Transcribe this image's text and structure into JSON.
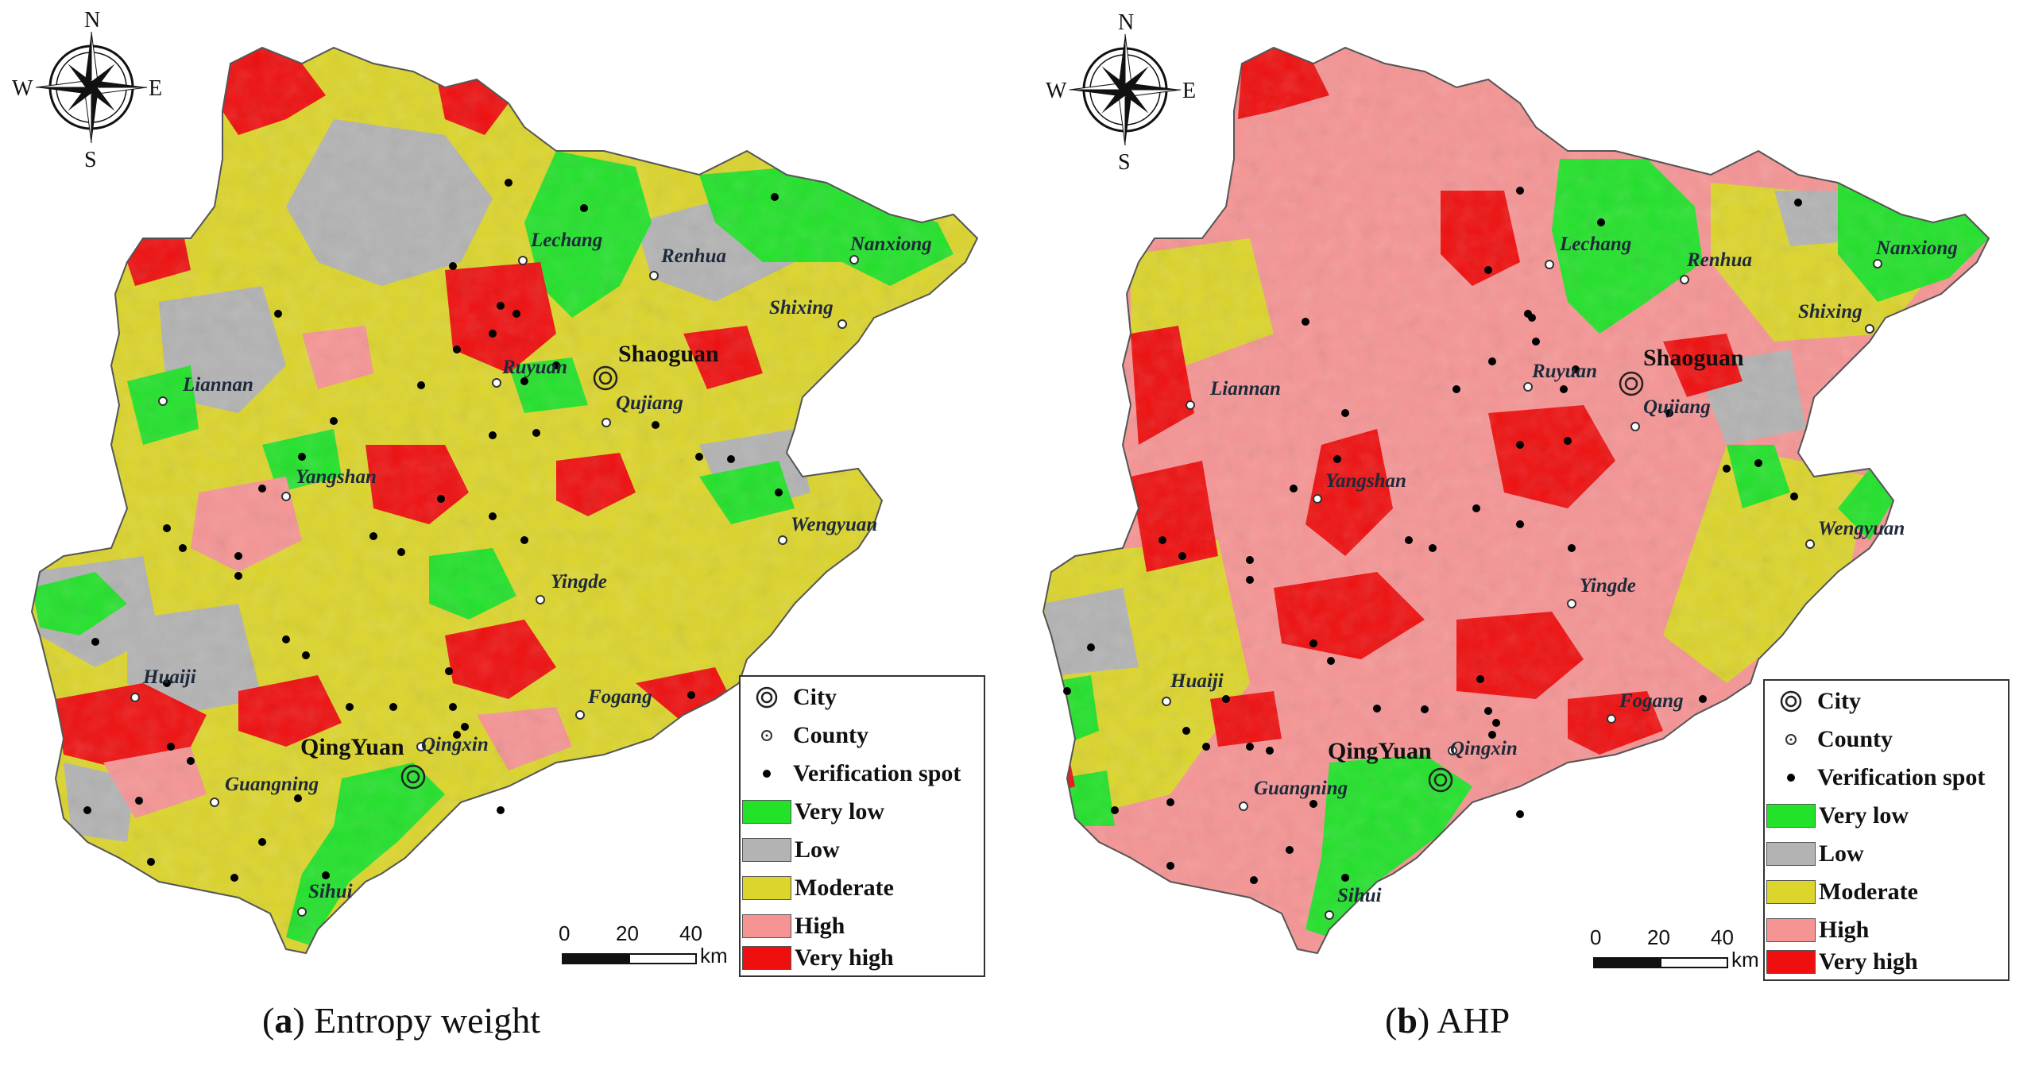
{
  "compass": {
    "n": "N",
    "s": "S",
    "e": "E",
    "w": "W"
  },
  "colors": {
    "very_low": "#22e22a",
    "low": "#b3b3b3",
    "moderate": "#dcd52b",
    "high": "#f69494",
    "very_high": "#ef0f0f",
    "boundary": "#555555"
  },
  "places": {
    "lechang": "Lechang",
    "renhua": "Renhua",
    "nanxiong": "Nanxiong",
    "shixing": "Shixing",
    "shaoguan": "Shaoguan",
    "lianan": "Liannan",
    "ruyuan": "Ruyuan",
    "qujiang": "Qujiang",
    "yangshan": "Yangshan",
    "wengyuan": "Wengyuan",
    "yingde": "Yingde",
    "huaiji": "Huaiji",
    "fogang": "Fogang",
    "qingyuan": "QingYuan",
    "qingxin": "Qingxin",
    "guangning": "Guangning",
    "sihui": "Sihui"
  },
  "legend": {
    "city": "City",
    "county": "County",
    "verification": "Verification spot",
    "very_low": "Very low",
    "low": "Low",
    "moderate": "Moderate",
    "high": "High",
    "very_high": "Very high"
  },
  "scale": {
    "t0": "0",
    "t1": "20",
    "t2": "40",
    "unit": "km"
  },
  "panels": [
    {
      "letter": "a",
      "method": "Entropy weight"
    },
    {
      "letter": "b",
      "method": "AHP"
    }
  ]
}
